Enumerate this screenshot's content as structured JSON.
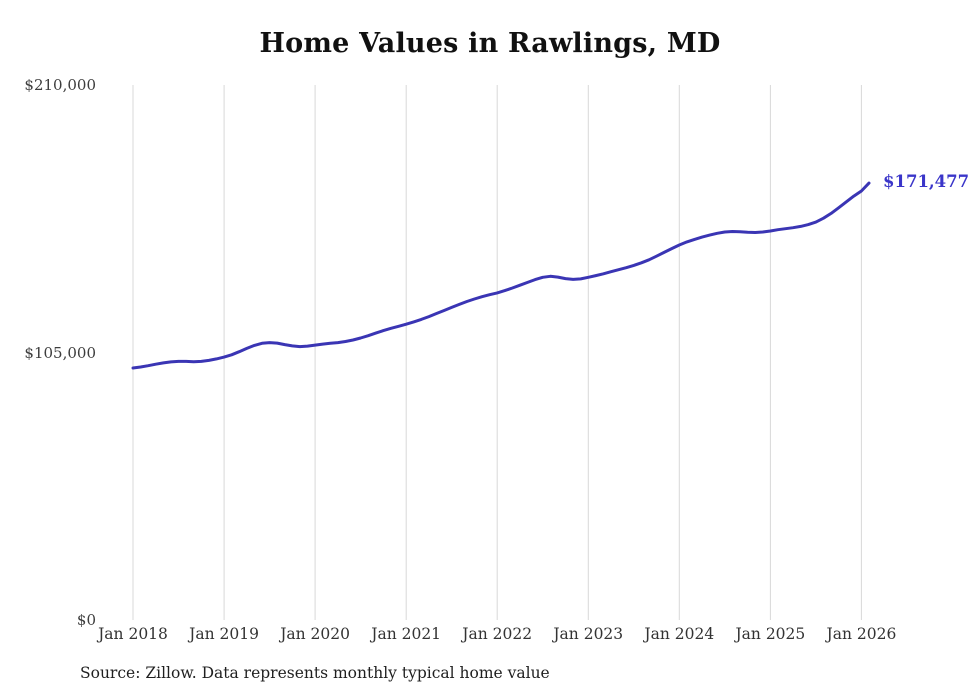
{
  "title": "Home Values in Rawlings, MD",
  "source_note": "Source: Zillow. Data represents monthly typical home value",
  "end_label": "$171,477",
  "colors": {
    "line": "#3a35b4",
    "end_label": "#3a35c9",
    "gridline": "#d8d8d8",
    "title_text": "#111111",
    "axis_text": "#3d3d3d"
  },
  "chart_data": {
    "type": "line",
    "title": "Home Values in Rawlings, MD",
    "x_range": {
      "start": "Jan 2018",
      "end": "Feb 2026",
      "interval": "monthly"
    },
    "x_tick_labels": [
      "Jan 2018",
      "Jan 2019",
      "Jan 2020",
      "Jan 2021",
      "Jan 2022",
      "Jan 2023",
      "Jan 2024",
      "Jan 2025",
      "Jan 2026"
    ],
    "x_tick_indices": [
      0,
      12,
      24,
      36,
      48,
      60,
      72,
      84,
      96
    ],
    "ylim": [
      0,
      210000
    ],
    "y_ticks": [
      {
        "value": 210000,
        "label": "$210,000"
      },
      {
        "value": 105000,
        "label": "$105,000"
      },
      {
        "value": 0,
        "label": "$0"
      }
    ],
    "grid": "vertical-only",
    "legend": "none",
    "last_value": 171477,
    "last_value_label": "$171,477",
    "series": [
      {
        "name": "Typical home value",
        "values": [
          98900,
          99300,
          99800,
          100400,
          100900,
          101300,
          101500,
          101500,
          101400,
          101500,
          101900,
          102500,
          103200,
          104100,
          105300,
          106600,
          107800,
          108600,
          108900,
          108700,
          108100,
          107600,
          107300,
          107500,
          107900,
          108300,
          108600,
          108900,
          109300,
          109900,
          110700,
          111600,
          112600,
          113600,
          114500,
          115300,
          116100,
          117000,
          118000,
          119100,
          120300,
          121500,
          122700,
          123900,
          125000,
          126000,
          126900,
          127700,
          128400,
          129300,
          130300,
          131400,
          132500,
          133600,
          134500,
          134900,
          134600,
          134000,
          133700,
          133900,
          134500,
          135200,
          135900,
          136700,
          137500,
          138300,
          139200,
          140200,
          141400,
          142800,
          144300,
          145800,
          147200,
          148400,
          149400,
          150300,
          151100,
          151800,
          152300,
          152500,
          152400,
          152200,
          152100,
          152300,
          152700,
          153200,
          153600,
          154000,
          154500,
          155200,
          156200,
          157700,
          159600,
          161800,
          164100,
          166400,
          168400,
          171477
        ]
      }
    ]
  }
}
